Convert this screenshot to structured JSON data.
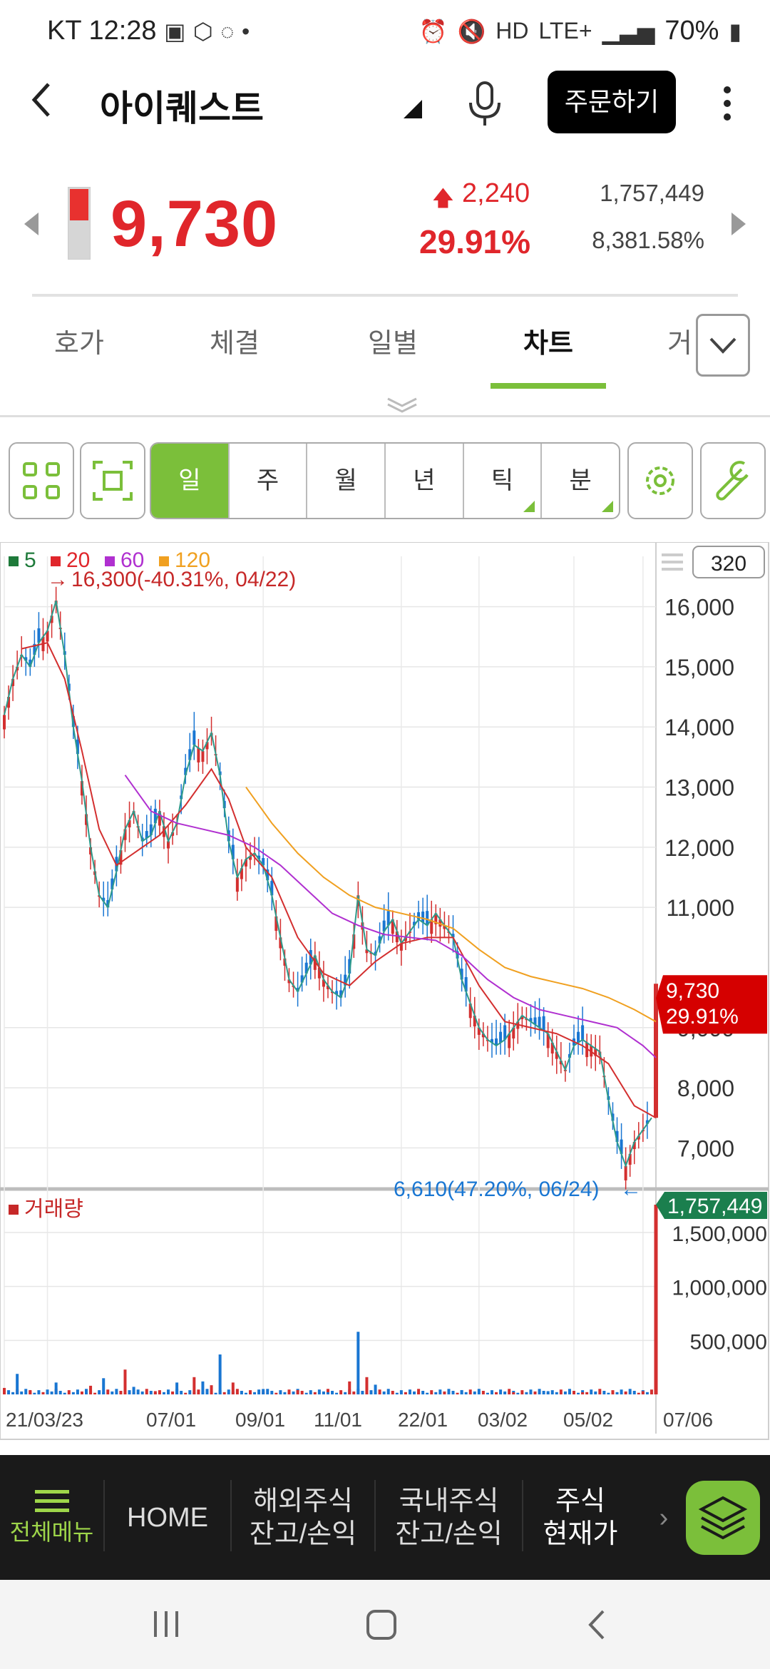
{
  "status": {
    "carrier": "KT",
    "time": "12:28",
    "network": "LTE+",
    "battery": "70%"
  },
  "header": {
    "stock_name": "아이퀘스트",
    "order_button": "주문하기"
  },
  "quote": {
    "price": "9,730",
    "change": "2,240",
    "change_pct": "29.91%",
    "volume": "1,757,449",
    "volume_ratio": "8,381.58%"
  },
  "tabs": [
    "호가",
    "체결",
    "일별",
    "차트",
    "거"
  ],
  "active_tab": "차트",
  "toolbar": {
    "periods": [
      "일",
      "주",
      "월",
      "년",
      "틱",
      "분"
    ],
    "active_period": "일",
    "count_box": "320"
  },
  "chart_data": [
    {
      "type": "candlestick",
      "legend": [
        {
          "label": "5",
          "color": "#1e7a3a"
        },
        {
          "label": "20",
          "color": "#e0262b"
        },
        {
          "label": "60",
          "color": "#b030d0"
        },
        {
          "label": "120",
          "color": "#f0a020"
        }
      ],
      "y_ticks": [
        "16,000",
        "15,000",
        "14,000",
        "13,000",
        "12,000",
        "11,000",
        "9,000",
        "8,000",
        "7,000"
      ],
      "ylim": [
        6400,
        16600
      ],
      "x_ticks": [
        "21/03/23",
        "07/01",
        "09/01",
        "11/01",
        "22/01",
        "03/02",
        "05/02",
        "07/06"
      ],
      "high_annotation": "16,300(-40.31%, 04/22)",
      "low_annotation": "6,610(47.20%, 06/24)",
      "current_label": "9,730",
      "current_pct": "29.91%",
      "price_path": [
        [
          0,
          14200
        ],
        [
          2,
          14800
        ],
        [
          4,
          15200
        ],
        [
          6,
          15000
        ],
        [
          8,
          15400
        ],
        [
          10,
          15600
        ],
        [
          12,
          16100
        ],
        [
          14,
          15200
        ],
        [
          16,
          14000
        ],
        [
          18,
          13100
        ],
        [
          20,
          12000
        ],
        [
          22,
          11200
        ],
        [
          24,
          11000
        ],
        [
          26,
          11600
        ],
        [
          28,
          12300
        ],
        [
          30,
          12600
        ],
        [
          32,
          12100
        ],
        [
          34,
          12200
        ],
        [
          36,
          12600
        ],
        [
          38,
          12100
        ],
        [
          40,
          12400
        ],
        [
          42,
          13200
        ],
        [
          44,
          13700
        ],
        [
          46,
          13600
        ],
        [
          48,
          13900
        ],
        [
          50,
          13200
        ],
        [
          52,
          12100
        ],
        [
          54,
          11500
        ],
        [
          56,
          11800
        ],
        [
          58,
          11900
        ],
        [
          60,
          11700
        ],
        [
          62,
          11200
        ],
        [
          64,
          10500
        ],
        [
          66,
          9800
        ],
        [
          68,
          9600
        ],
        [
          70,
          9900
        ],
        [
          72,
          10200
        ],
        [
          74,
          9800
        ],
        [
          76,
          9600
        ],
        [
          78,
          9500
        ],
        [
          80,
          9900
        ],
        [
          82,
          11200
        ],
        [
          84,
          10300
        ],
        [
          86,
          10200
        ],
        [
          88,
          10600
        ],
        [
          90,
          10800
        ],
        [
          92,
          10400
        ],
        [
          94,
          10600
        ],
        [
          96,
          10800
        ],
        [
          98,
          10700
        ],
        [
          100,
          10900
        ],
        [
          102,
          10700
        ],
        [
          104,
          10500
        ],
        [
          106,
          9800
        ],
        [
          108,
          9400
        ],
        [
          110,
          9000
        ],
        [
          112,
          8800
        ],
        [
          114,
          8700
        ],
        [
          116,
          8800
        ],
        [
          118,
          9000
        ],
        [
          120,
          9200
        ],
        [
          122,
          9100
        ],
        [
          124,
          9000
        ],
        [
          126,
          8900
        ],
        [
          128,
          8600
        ],
        [
          130,
          8300
        ],
        [
          132,
          8700
        ],
        [
          134,
          8800
        ],
        [
          136,
          8700
        ],
        [
          138,
          8600
        ],
        [
          140,
          7800
        ],
        [
          142,
          7100
        ],
        [
          144,
          6700
        ],
        [
          146,
          7100
        ],
        [
          148,
          7300
        ],
        [
          150,
          7500
        ],
        [
          151,
          9730
        ]
      ],
      "ma20_path": [
        [
          4,
          15300
        ],
        [
          10,
          15400
        ],
        [
          14,
          14800
        ],
        [
          18,
          13600
        ],
        [
          22,
          12300
        ],
        [
          26,
          11700
        ],
        [
          30,
          11900
        ],
        [
          36,
          12200
        ],
        [
          42,
          12700
        ],
        [
          48,
          13300
        ],
        [
          52,
          12800
        ],
        [
          56,
          12000
        ],
        [
          62,
          11500
        ],
        [
          68,
          10500
        ],
        [
          74,
          9900
        ],
        [
          80,
          9700
        ],
        [
          86,
          10100
        ],
        [
          92,
          10400
        ],
        [
          98,
          10500
        ],
        [
          104,
          10500
        ],
        [
          110,
          9700
        ],
        [
          116,
          9100
        ],
        [
          122,
          9000
        ],
        [
          128,
          8900
        ],
        [
          134,
          8700
        ],
        [
          140,
          8400
        ],
        [
          146,
          7700
        ],
        [
          151,
          7500
        ]
      ],
      "ma60_path": [
        [
          28,
          13200
        ],
        [
          34,
          12600
        ],
        [
          40,
          12400
        ],
        [
          46,
          12300
        ],
        [
          52,
          12200
        ],
        [
          58,
          12000
        ],
        [
          64,
          11700
        ],
        [
          70,
          11300
        ],
        [
          76,
          10900
        ],
        [
          82,
          10700
        ],
        [
          88,
          10550
        ],
        [
          94,
          10500
        ],
        [
          100,
          10450
        ],
        [
          106,
          10200
        ],
        [
          112,
          9800
        ],
        [
          118,
          9500
        ],
        [
          124,
          9300
        ],
        [
          130,
          9200
        ],
        [
          136,
          9100
        ],
        [
          142,
          9000
        ],
        [
          148,
          8700
        ],
        [
          151,
          8500
        ]
      ],
      "ma120_path": [
        [
          56,
          13000
        ],
        [
          62,
          12400
        ],
        [
          68,
          11900
        ],
        [
          74,
          11500
        ],
        [
          80,
          11200
        ],
        [
          86,
          11000
        ],
        [
          92,
          10900
        ],
        [
          98,
          10800
        ],
        [
          104,
          10650
        ],
        [
          110,
          10300
        ],
        [
          116,
          10000
        ],
        [
          122,
          9850
        ],
        [
          128,
          9750
        ],
        [
          134,
          9650
        ],
        [
          140,
          9500
        ],
        [
          146,
          9300
        ],
        [
          151,
          9100
        ]
      ]
    },
    {
      "type": "bar",
      "title": "거래량",
      "y_ticks": [
        "1,500,000",
        "1,000,000",
        "500,000"
      ],
      "ylim": [
        0,
        1850000
      ],
      "current_label": "1,757,449",
      "values_sample": [
        [
          0,
          60000
        ],
        [
          3,
          190000
        ],
        [
          6,
          40000
        ],
        [
          12,
          110000
        ],
        [
          20,
          80000
        ],
        [
          23,
          150000
        ],
        [
          28,
          230000
        ],
        [
          30,
          70000
        ],
        [
          35,
          30000
        ],
        [
          40,
          110000
        ],
        [
          44,
          160000
        ],
        [
          46,
          120000
        ],
        [
          48,
          85000
        ],
        [
          50,
          370000
        ],
        [
          53,
          110000
        ],
        [
          60,
          50000
        ],
        [
          68,
          40000
        ],
        [
          75,
          20000
        ],
        [
          80,
          120000
        ],
        [
          82,
          580000
        ],
        [
          84,
          160000
        ],
        [
          86,
          90000
        ],
        [
          96,
          20000
        ],
        [
          106,
          40000
        ],
        [
          118,
          20000
        ],
        [
          126,
          30000
        ],
        [
          134,
          20000
        ],
        [
          142,
          15000
        ],
        [
          148,
          30000
        ],
        [
          151,
          1757449
        ]
      ]
    }
  ],
  "bottom_nav": {
    "menu_label": "전체메뉴",
    "items": [
      "HOME",
      "해외주식\n잔고/손익",
      "국내주식\n잔고/손익",
      "주식\n현재가"
    ],
    "active_item": "주식\n현재가"
  }
}
